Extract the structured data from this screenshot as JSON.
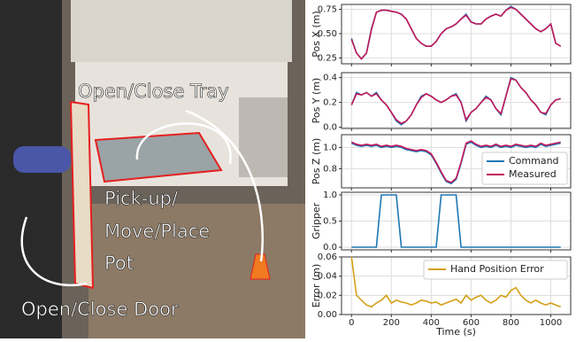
{
  "photo": {
    "labels": [
      "Open/Close Tray",
      "Pick-up/",
      "Move/Place",
      "Pot",
      "Open/Close Door"
    ]
  },
  "chart_data": [
    {
      "type": "line",
      "ylabel": "Pos X (m)",
      "xlim": [
        -50,
        1100
      ],
      "xticks": [
        0,
        200,
        400,
        600,
        800,
        1000
      ],
      "ylim": [
        0.19,
        0.8
      ],
      "yticks": [
        0.25,
        {
          "value": 0.5,
          "label": "0.50"
        },
        0.75
      ],
      "grid": true,
      "x": [
        0,
        25,
        50,
        75,
        100,
        125,
        150,
        175,
        200,
        225,
        250,
        275,
        300,
        325,
        350,
        375,
        400,
        425,
        450,
        475,
        500,
        525,
        550,
        575,
        600,
        625,
        650,
        675,
        700,
        725,
        750,
        775,
        800,
        825,
        850,
        875,
        900,
        925,
        950,
        975,
        1000,
        1025,
        1050
      ],
      "series": [
        {
          "name": "Command",
          "color": "#1f77b4",
          "values": [
            0.45,
            0.3,
            0.24,
            0.3,
            0.55,
            0.72,
            0.74,
            0.74,
            0.73,
            0.72,
            0.7,
            0.65,
            0.55,
            0.45,
            0.4,
            0.37,
            0.37,
            0.42,
            0.5,
            0.55,
            0.57,
            0.6,
            0.65,
            0.7,
            0.62,
            0.6,
            0.6,
            0.65,
            0.68,
            0.7,
            0.68,
            0.74,
            0.78,
            0.75,
            0.7,
            0.65,
            0.6,
            0.55,
            0.52,
            0.55,
            0.6,
            0.4,
            0.37
          ]
        },
        {
          "name": "Measured",
          "color": "#c2185b",
          "values": [
            0.44,
            0.3,
            0.24,
            0.3,
            0.54,
            0.72,
            0.74,
            0.74,
            0.73,
            0.72,
            0.7,
            0.65,
            0.55,
            0.45,
            0.4,
            0.37,
            0.37,
            0.42,
            0.5,
            0.55,
            0.57,
            0.6,
            0.65,
            0.69,
            0.62,
            0.6,
            0.6,
            0.65,
            0.68,
            0.7,
            0.68,
            0.74,
            0.77,
            0.75,
            0.7,
            0.65,
            0.6,
            0.55,
            0.52,
            0.55,
            0.6,
            0.4,
            0.37
          ]
        }
      ]
    },
    {
      "type": "line",
      "ylabel": "Pos Y (m)",
      "xlim": [
        -50,
        1100
      ],
      "xticks": [
        0,
        200,
        400,
        600,
        800,
        1000
      ],
      "ylim": [
        -0.01,
        0.44
      ],
      "yticks": [
        {
          "value": 0,
          "label": "0.0"
        },
        0.2,
        0.4
      ],
      "grid": true,
      "x": [
        0,
        25,
        50,
        75,
        100,
        125,
        150,
        175,
        200,
        225,
        250,
        275,
        300,
        325,
        350,
        375,
        400,
        425,
        450,
        475,
        500,
        525,
        550,
        575,
        600,
        625,
        650,
        675,
        700,
        725,
        750,
        775,
        800,
        825,
        850,
        875,
        900,
        925,
        950,
        975,
        1000,
        1025,
        1050
      ],
      "series": [
        {
          "name": "Command",
          "color": "#1f77b4",
          "values": [
            0.18,
            0.28,
            0.26,
            0.28,
            0.25,
            0.28,
            0.22,
            0.18,
            0.12,
            0.05,
            0.02,
            0.05,
            0.1,
            0.18,
            0.25,
            0.27,
            0.25,
            0.22,
            0.2,
            0.22,
            0.25,
            0.27,
            0.2,
            0.05,
            0.12,
            0.15,
            0.2,
            0.25,
            0.22,
            0.15,
            0.1,
            0.25,
            0.4,
            0.38,
            0.32,
            0.28,
            0.22,
            0.18,
            0.12,
            0.1,
            0.18,
            0.22,
            0.23
          ]
        },
        {
          "name": "Measured",
          "color": "#c2185b",
          "values": [
            0.18,
            0.27,
            0.26,
            0.28,
            0.25,
            0.27,
            0.22,
            0.18,
            0.12,
            0.06,
            0.03,
            0.05,
            0.1,
            0.18,
            0.24,
            0.27,
            0.25,
            0.22,
            0.2,
            0.22,
            0.25,
            0.26,
            0.2,
            0.06,
            0.12,
            0.15,
            0.2,
            0.24,
            0.22,
            0.15,
            0.11,
            0.25,
            0.39,
            0.38,
            0.32,
            0.28,
            0.22,
            0.18,
            0.12,
            0.11,
            0.18,
            0.22,
            0.23
          ]
        }
      ]
    },
    {
      "type": "line",
      "ylabel": "Pos Z (m)",
      "xlim": [
        -50,
        1100
      ],
      "xticks": [
        0,
        200,
        400,
        600,
        800,
        1000
      ],
      "ylim": [
        0.62,
        1.12
      ],
      "yticks": [
        0.8,
        {
          "value": 1,
          "label": "1.0"
        }
      ],
      "grid": true,
      "legend": "lower right",
      "x": [
        0,
        25,
        50,
        75,
        100,
        125,
        150,
        175,
        200,
        225,
        250,
        275,
        300,
        325,
        350,
        375,
        400,
        425,
        450,
        475,
        500,
        525,
        550,
        575,
        600,
        625,
        650,
        675,
        700,
        725,
        750,
        775,
        800,
        825,
        850,
        875,
        900,
        925,
        950,
        975,
        1000,
        1025,
        1050
      ],
      "series": [
        {
          "name": "Command",
          "color": "#1f77b4",
          "values": [
            1.04,
            1.02,
            1.01,
            1.02,
            1.01,
            1.02,
            1.0,
            1.01,
            1.0,
            1.01,
            1.0,
            0.98,
            0.97,
            0.96,
            0.97,
            0.96,
            0.93,
            0.85,
            0.76,
            0.68,
            0.66,
            0.7,
            0.85,
            1.03,
            1.05,
            1.02,
            1.0,
            1.01,
            1.0,
            1.02,
            1.0,
            1.01,
            1.0,
            1.02,
            1.01,
            1.0,
            1.01,
            1.0,
            1.03,
            1.01,
            1.02,
            1.03,
            1.04
          ]
        },
        {
          "name": "Measured",
          "color": "#c2185b",
          "values": [
            1.05,
            1.03,
            1.02,
            1.03,
            1.02,
            1.03,
            1.01,
            1.02,
            1.01,
            1.02,
            1.01,
            0.99,
            0.98,
            0.97,
            0.98,
            0.97,
            0.94,
            0.86,
            0.77,
            0.69,
            0.67,
            0.71,
            0.86,
            1.04,
            1.06,
            1.03,
            1.01,
            1.02,
            1.01,
            1.03,
            1.01,
            1.02,
            1.01,
            1.03,
            1.02,
            1.01,
            1.02,
            1.01,
            1.04,
            1.02,
            1.03,
            1.04,
            1.05
          ]
        }
      ]
    },
    {
      "type": "line",
      "ylabel": "Gripper",
      "xlim": [
        -50,
        1100
      ],
      "xticks": [
        0,
        200,
        400,
        600,
        800,
        1000
      ],
      "ylim": [
        -0.05,
        1.05
      ],
      "yticks": [
        {
          "value": 0,
          "label": "0.0"
        },
        0.5,
        {
          "value": 1,
          "label": "1.0"
        }
      ],
      "grid": true,
      "x": [
        0,
        25,
        50,
        75,
        100,
        125,
        150,
        175,
        200,
        225,
        250,
        275,
        300,
        325,
        350,
        375,
        400,
        425,
        450,
        475,
        500,
        525,
        550,
        575,
        600,
        625,
        650,
        675,
        700,
        725,
        750,
        775,
        800,
        825,
        850,
        875,
        900,
        925,
        950,
        975,
        1000,
        1025,
        1050
      ],
      "series": [
        {
          "name": "Command",
          "color": "#1f77b4",
          "values": [
            0,
            0,
            0,
            0,
            0,
            0,
            1,
            1,
            1,
            1,
            0,
            0,
            0,
            0,
            0,
            0,
            0,
            0,
            1,
            1,
            1,
            1,
            0,
            0,
            0,
            0,
            0,
            0,
            0,
            0,
            0,
            0,
            0,
            0,
            0,
            0,
            0,
            0,
            0,
            0,
            0,
            0,
            0
          ]
        }
      ]
    },
    {
      "type": "line",
      "ylabel": "Error (m)",
      "xlabel": "Time (s)",
      "xlim": [
        -50,
        1100
      ],
      "xticks": [
        0,
        200,
        400,
        600,
        800,
        1000
      ],
      "ylim": [
        0,
        0.06
      ],
      "yticks": [
        {
          "value": 0,
          "label": "0.00"
        },
        {
          "value": 0.02,
          "label": "0.02"
        },
        {
          "value": 0.04,
          "label": "0.04"
        },
        {
          "value": 0.06,
          "label": "0.06"
        }
      ],
      "grid": true,
      "legend": "upper right",
      "x": [
        0,
        25,
        50,
        75,
        100,
        125,
        150,
        175,
        200,
        225,
        250,
        275,
        300,
        325,
        350,
        375,
        400,
        425,
        450,
        475,
        500,
        525,
        550,
        575,
        600,
        625,
        650,
        675,
        700,
        725,
        750,
        775,
        800,
        825,
        850,
        875,
        900,
        925,
        950,
        975,
        1000,
        1025,
        1050
      ],
      "series": [
        {
          "name": "Hand Position Error",
          "color": "#d4a017",
          "values": [
            0.06,
            0.02,
            0.015,
            0.01,
            0.008,
            0.012,
            0.015,
            0.02,
            0.012,
            0.015,
            0.013,
            0.012,
            0.01,
            0.012,
            0.015,
            0.014,
            0.012,
            0.013,
            0.01,
            0.012,
            0.014,
            0.016,
            0.012,
            0.02,
            0.015,
            0.018,
            0.02,
            0.015,
            0.012,
            0.015,
            0.02,
            0.018,
            0.025,
            0.028,
            0.02,
            0.015,
            0.012,
            0.015,
            0.012,
            0.01,
            0.012,
            0.01,
            0.008
          ]
        }
      ]
    }
  ]
}
